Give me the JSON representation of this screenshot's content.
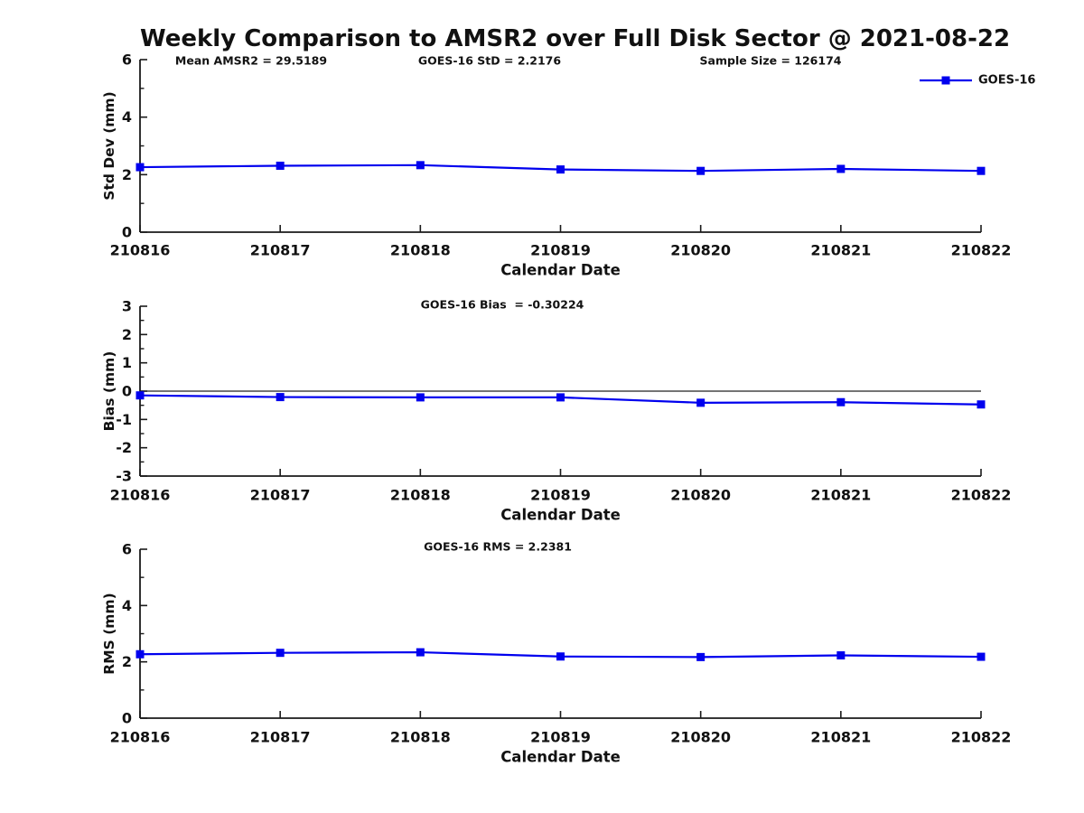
{
  "header": {
    "title": "Weekly Comparison to AMSR2 over Full Disk Sector @ 2021-08-22"
  },
  "colors": {
    "series_line": "#0000EE",
    "text": "#111111",
    "axis": "#1a1a1a"
  },
  "legend": {
    "label": "GOES-16",
    "position": "top-right-outside"
  },
  "chart_data": [
    {
      "type": "line",
      "name": "std-dev-subplot",
      "title": "",
      "annotations": [
        "Mean AMSR2 = 29.5189",
        "GOES-16 StD = 2.2176",
        "Sample Size = 126174"
      ],
      "categories": [
        "210816",
        "210817",
        "210818",
        "210819",
        "210820",
        "210821",
        "210822"
      ],
      "series": [
        {
          "name": "GOES-16",
          "marker": "square",
          "values": [
            2.26,
            2.31,
            2.33,
            2.18,
            2.13,
            2.2,
            2.13
          ]
        }
      ],
      "xlabel": "Calendar Date",
      "ylabel": "Std Dev (mm)",
      "ylim": [
        0,
        6
      ],
      "yticks": [
        0,
        2,
        4,
        6
      ],
      "grid": false,
      "legend_visible": true,
      "zero_line": false
    },
    {
      "type": "line",
      "name": "bias-subplot",
      "title": "",
      "annotations": [
        "GOES-16 Bias  = -0.30224"
      ],
      "categories": [
        "210816",
        "210817",
        "210818",
        "210819",
        "210820",
        "210821",
        "210822"
      ],
      "series": [
        {
          "name": "GOES-16",
          "marker": "square",
          "values": [
            -0.15,
            -0.21,
            -0.22,
            -0.22,
            -0.41,
            -0.39,
            -0.47
          ]
        }
      ],
      "xlabel": "Calendar Date",
      "ylabel": "Bias (mm)",
      "ylim": [
        -3,
        3
      ],
      "yticks": [
        -3,
        -2,
        -1,
        0,
        1,
        2,
        3
      ],
      "grid": false,
      "legend_visible": false,
      "zero_line": true
    },
    {
      "type": "line",
      "name": "rms-subplot",
      "title": "",
      "annotations": [
        "GOES-16 RMS = 2.2381"
      ],
      "categories": [
        "210816",
        "210817",
        "210818",
        "210819",
        "210820",
        "210821",
        "210822"
      ],
      "series": [
        {
          "name": "GOES-16",
          "marker": "square",
          "values": [
            2.27,
            2.32,
            2.34,
            2.19,
            2.17,
            2.23,
            2.18
          ]
        }
      ],
      "xlabel": "Calendar Date",
      "ylabel": "RMS (mm)",
      "ylim": [
        0,
        6
      ],
      "yticks": [
        0,
        2,
        4,
        6
      ],
      "grid": false,
      "legend_visible": false,
      "zero_line": false
    }
  ]
}
